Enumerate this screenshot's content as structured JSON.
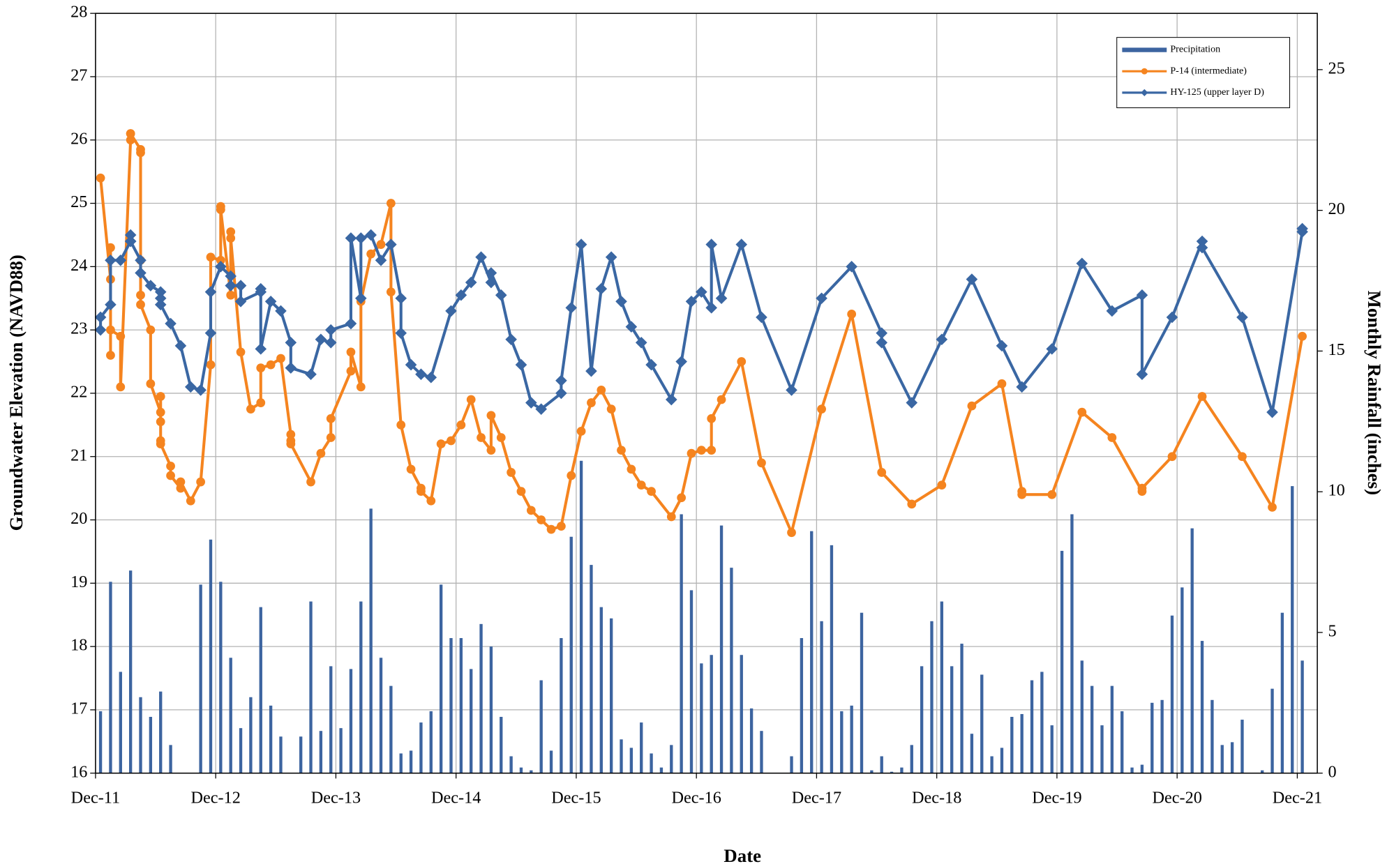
{
  "chart_data": {
    "type": "combo",
    "xlabel": "Date",
    "ylabel": "Groundwater Elevation (NAVD88)",
    "y2label": "Monthly Rainfall (inches)",
    "xlim": [
      "2011-12",
      "2022-02"
    ],
    "xticks": [
      {
        "value": "2011-12",
        "label": "Dec-11"
      },
      {
        "value": "2012-12",
        "label": "Dec-12"
      },
      {
        "value": "2013-12",
        "label": "Dec-13"
      },
      {
        "value": "2014-12",
        "label": "Dec-14"
      },
      {
        "value": "2015-12",
        "label": "Dec-15"
      },
      {
        "value": "2016-12",
        "label": "Dec-16"
      },
      {
        "value": "2017-12",
        "label": "Dec-17"
      },
      {
        "value": "2018-12",
        "label": "Dec-18"
      },
      {
        "value": "2019-12",
        "label": "Dec-19"
      },
      {
        "value": "2020-12",
        "label": "Dec-20"
      },
      {
        "value": "2021-12",
        "label": "Dec-21"
      }
    ],
    "ylim": [
      16,
      28
    ],
    "yticks": [
      16,
      17,
      18,
      19,
      20,
      21,
      22,
      23,
      24,
      25,
      26,
      27,
      28
    ],
    "y2lim": [
      0,
      27
    ],
    "y2ticks": [
      0,
      5,
      10,
      15,
      20,
      25
    ],
    "grid": true,
    "legend": "upper right",
    "series": [
      {
        "name": "Precipitation",
        "type": "bar",
        "axis": "y2",
        "color": "#3c64a0",
        "x": [
          "2011-12",
          "2012-01",
          "2012-02",
          "2012-03",
          "2012-04",
          "2012-05",
          "2012-06",
          "2012-07",
          "2012-08",
          "2012-09",
          "2012-10",
          "2012-11",
          "2012-12",
          "2013-01",
          "2013-02",
          "2013-03",
          "2013-04",
          "2013-05",
          "2013-06",
          "2013-07",
          "2013-08",
          "2013-09",
          "2013-10",
          "2013-11",
          "2013-12",
          "2014-01",
          "2014-02",
          "2014-03",
          "2014-04",
          "2014-05",
          "2014-06",
          "2014-07",
          "2014-08",
          "2014-09",
          "2014-10",
          "2014-11",
          "2014-12",
          "2015-01",
          "2015-02",
          "2015-03",
          "2015-04",
          "2015-05",
          "2015-06",
          "2015-07",
          "2015-08",
          "2015-09",
          "2015-10",
          "2015-11",
          "2015-12",
          "2016-01",
          "2016-02",
          "2016-03",
          "2016-04",
          "2016-05",
          "2016-06",
          "2016-07",
          "2016-08",
          "2016-09",
          "2016-10",
          "2016-11",
          "2016-12",
          "2017-01",
          "2017-02",
          "2017-03",
          "2017-04",
          "2017-05",
          "2017-06",
          "2017-07",
          "2017-08",
          "2017-09",
          "2017-10",
          "2017-11",
          "2017-12",
          "2018-01",
          "2018-02",
          "2018-03",
          "2018-04",
          "2018-05",
          "2018-06",
          "2018-07",
          "2018-08",
          "2018-09",
          "2018-10",
          "2018-11",
          "2018-12",
          "2019-01",
          "2019-02",
          "2019-03",
          "2019-04",
          "2019-05",
          "2019-06",
          "2019-07",
          "2019-08",
          "2019-09",
          "2019-10",
          "2019-11",
          "2019-12",
          "2020-01",
          "2020-02",
          "2020-03",
          "2020-04",
          "2020-05",
          "2020-06",
          "2020-07",
          "2020-08",
          "2020-09",
          "2020-10",
          "2020-11",
          "2020-12",
          "2021-01",
          "2021-02",
          "2021-03",
          "2021-04",
          "2021-05",
          "2021-06",
          "2021-07",
          "2021-08",
          "2021-09",
          "2021-10",
          "2021-11",
          "2021-12"
        ],
        "values": [
          2.2,
          6.8,
          3.6,
          7.2,
          2.7,
          2.0,
          2.9,
          1.0,
          0,
          0,
          6.7,
          8.3,
          6.8,
          4.1,
          1.6,
          2.7,
          5.9,
          2.4,
          1.3,
          0,
          1.3,
          6.1,
          1.5,
          3.8,
          1.6,
          3.7,
          6.1,
          9.4,
          4.1,
          3.1,
          0.7,
          0.8,
          1.8,
          2.2,
          6.7,
          4.8,
          4.8,
          3.7,
          5.3,
          4.5,
          2.0,
          0.6,
          0.2,
          0.1,
          3.3,
          0.8,
          4.8,
          8.4,
          11.1,
          7.4,
          5.9,
          5.5,
          1.2,
          0.9,
          1.8,
          0.7,
          0.2,
          1.0,
          9.2,
          6.5,
          3.9,
          4.2,
          8.8,
          7.3,
          4.2,
          2.3,
          1.5,
          0,
          0,
          0.6,
          4.8,
          8.6,
          5.4,
          8.1,
          2.2,
          2.4,
          5.7,
          0.1,
          0.6,
          0.05,
          0.2,
          1.0,
          3.8,
          5.4,
          6.1,
          3.8,
          4.6,
          1.4,
          3.5,
          0.6,
          0.9,
          2.0,
          2.1,
          3.3,
          3.6,
          1.7,
          7.9,
          9.2,
          4.0,
          3.1,
          1.7,
          3.1,
          2.2,
          0.2,
          0.3,
          2.5,
          2.6,
          5.6,
          6.6,
          8.7,
          4.7,
          2.6,
          1.0,
          1.1,
          1.9,
          0,
          0.1,
          3.0,
          5.7,
          10.2,
          4.0
        ]
      },
      {
        "name": "P-14 (intermediate)",
        "type": "line",
        "marker": "circle",
        "color": "#f5841f",
        "x": [
          "2011-12",
          "2012-01",
          "2012-01",
          "2012-01",
          "2012-01",
          "2012-02",
          "2012-02",
          "2012-03",
          "2012-03",
          "2012-03",
          "2012-04",
          "2012-04",
          "2012-04",
          "2012-04",
          "2012-04",
          "2012-05",
          "2012-05",
          "2012-06",
          "2012-06",
          "2012-06",
          "2012-06",
          "2012-06",
          "2012-07",
          "2012-07",
          "2012-08",
          "2012-08",
          "2012-09",
          "2012-10",
          "2012-11",
          "2012-11",
          "2012-12",
          "2012-12",
          "2012-12",
          "2013-01",
          "2013-01",
          "2013-01",
          "2013-02",
          "2013-03",
          "2013-04",
          "2013-04",
          "2013-05",
          "2013-06",
          "2013-07",
          "2013-07",
          "2013-07",
          "2013-09",
          "2013-10",
          "2013-11",
          "2013-11",
          "2014-01",
          "2014-01",
          "2014-02",
          "2014-02",
          "2014-03",
          "2014-04",
          "2014-05",
          "2014-05",
          "2014-06",
          "2014-07",
          "2014-08",
          "2014-08",
          "2014-09",
          "2014-10",
          "2014-11",
          "2014-12",
          "2015-01",
          "2015-02",
          "2015-03",
          "2015-03",
          "2015-04",
          "2015-05",
          "2015-06",
          "2015-07",
          "2015-08",
          "2015-09",
          "2015-10",
          "2015-11",
          "2015-12",
          "2016-01",
          "2016-02",
          "2016-03",
          "2016-04",
          "2016-05",
          "2016-06",
          "2016-07",
          "2016-09",
          "2016-10",
          "2016-11",
          "2016-12",
          "2017-01",
          "2017-01",
          "2017-02",
          "2017-04",
          "2017-06",
          "2017-09",
          "2017-12",
          "2018-03",
          "2018-06",
          "2018-09",
          "2018-12",
          "2019-03",
          "2019-06",
          "2019-08",
          "2019-08",
          "2019-11",
          "2020-02",
          "2020-05",
          "2020-08",
          "2020-08",
          "2020-11",
          "2021-02",
          "2021-06",
          "2021-09",
          "2021-12"
        ],
        "values": [
          25.4,
          23.8,
          22.6,
          24.3,
          23.0,
          22.9,
          22.1,
          26.0,
          26.1,
          26.1,
          25.85,
          25.8,
          24.1,
          23.55,
          23.4,
          23.0,
          22.15,
          21.7,
          21.55,
          21.95,
          21.25,
          21.2,
          20.85,
          20.7,
          20.5,
          20.6,
          20.3,
          20.6,
          22.45,
          24.15,
          24.1,
          24.95,
          24.9,
          23.55,
          24.55,
          24.45,
          22.65,
          21.75,
          21.85,
          22.4,
          22.45,
          22.55,
          21.35,
          21.25,
          21.2,
          20.6,
          21.05,
          21.3,
          21.6,
          22.35,
          22.65,
          22.1,
          23.45,
          24.2,
          24.35,
          25.0,
          23.6,
          21.5,
          20.8,
          20.5,
          20.45,
          20.3,
          21.2,
          21.25,
          21.5,
          21.9,
          21.3,
          21.1,
          21.65,
          21.3,
          20.75,
          20.45,
          20.15,
          20.0,
          19.85,
          19.9,
          20.7,
          21.4,
          21.85,
          22.05,
          21.75,
          21.1,
          20.8,
          20.55,
          20.45,
          20.05,
          20.35,
          21.05,
          21.1,
          21.1,
          21.6,
          21.9,
          22.5,
          20.9,
          19.8,
          21.75,
          23.25,
          20.75,
          20.25,
          20.55,
          21.8,
          22.15,
          20.45,
          20.4,
          20.4,
          21.7,
          21.3,
          20.45,
          20.5,
          21.0,
          21.95,
          21.0,
          20.2,
          22.9
        ]
      },
      {
        "name": "HY-125 (upper layer D)",
        "type": "line",
        "marker": "diamond",
        "color": "#3a67a3",
        "x": [
          "2011-12",
          "2011-12",
          "2012-01",
          "2012-01",
          "2012-02",
          "2012-03",
          "2012-03",
          "2012-03",
          "2012-04",
          "2012-04",
          "2012-05",
          "2012-06",
          "2012-06",
          "2012-06",
          "2012-07",
          "2012-08",
          "2012-09",
          "2012-10",
          "2012-11",
          "2012-11",
          "2012-12",
          "2013-01",
          "2013-01",
          "2013-02",
          "2013-02",
          "2013-04",
          "2013-04",
          "2013-04",
          "2013-05",
          "2013-06",
          "2013-07",
          "2013-07",
          "2013-09",
          "2013-10",
          "2013-11",
          "2013-11",
          "2014-01",
          "2014-01",
          "2014-02",
          "2014-02",
          "2014-03",
          "2014-04",
          "2014-05",
          "2014-06",
          "2014-06",
          "2014-07",
          "2014-08",
          "2014-09",
          "2014-11",
          "2014-12",
          "2015-01",
          "2015-02",
          "2015-03",
          "2015-03",
          "2015-04",
          "2015-05",
          "2015-06",
          "2015-07",
          "2015-08",
          "2015-10",
          "2015-10",
          "2015-11",
          "2015-12",
          "2016-01",
          "2016-02",
          "2016-03",
          "2016-04",
          "2016-05",
          "2016-06",
          "2016-07",
          "2016-09",
          "2016-10",
          "2016-11",
          "2016-12",
          "2017-01",
          "2017-01",
          "2017-02",
          "2017-04",
          "2017-06",
          "2017-09",
          "2017-12",
          "2018-03",
          "2018-06",
          "2018-06",
          "2018-09",
          "2018-12",
          "2019-03",
          "2019-06",
          "2019-08",
          "2019-11",
          "2020-02",
          "2020-05",
          "2020-08",
          "2020-08",
          "2020-11",
          "2021-02",
          "2021-02",
          "2021-06",
          "2021-09",
          "2021-12",
          "2021-12"
        ],
        "values": [
          23.0,
          23.2,
          23.4,
          24.1,
          24.1,
          24.4,
          24.5,
          24.4,
          24.1,
          23.9,
          23.7,
          23.6,
          23.5,
          23.4,
          23.1,
          22.75,
          22.1,
          22.05,
          22.95,
          23.6,
          24.0,
          23.85,
          23.7,
          23.7,
          23.45,
          23.6,
          23.65,
          22.7,
          23.45,
          23.3,
          22.8,
          22.4,
          22.3,
          22.85,
          22.8,
          23.0,
          23.1,
          24.45,
          23.5,
          24.45,
          24.5,
          24.1,
          24.35,
          23.5,
          22.95,
          22.45,
          22.3,
          22.25,
          23.3,
          23.55,
          23.75,
          24.15,
          23.75,
          23.9,
          23.55,
          22.85,
          22.45,
          21.85,
          21.75,
          22.0,
          22.2,
          23.35,
          24.35,
          22.35,
          23.65,
          24.15,
          23.45,
          23.05,
          22.8,
          22.45,
          21.9,
          22.5,
          23.45,
          23.6,
          23.35,
          24.35,
          23.5,
          24.35,
          23.2,
          22.05,
          23.5,
          24.0,
          22.95,
          22.8,
          21.85,
          22.85,
          23.8,
          22.75,
          22.1,
          22.7,
          24.05,
          23.3,
          23.55,
          22.3,
          23.2,
          24.4,
          24.3,
          23.2,
          21.7,
          24.55,
          24.6
        ]
      }
    ]
  }
}
